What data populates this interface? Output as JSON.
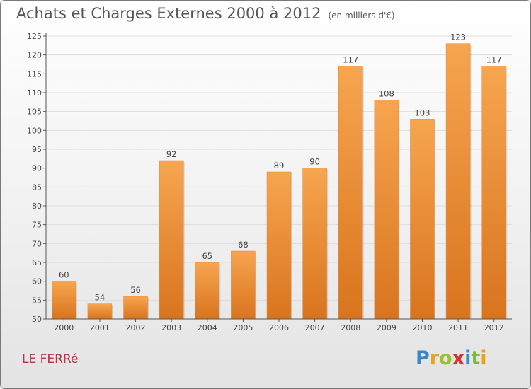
{
  "title": "Achats et Charges Externes 2000 à 2012",
  "unit": "(en milliers d'€)",
  "location": "LE FERRé",
  "logo": {
    "p": "P",
    "r": "r",
    "o": "o",
    "x": "x",
    "i1": "i",
    "t": "t",
    "i2": "i"
  },
  "colors": {
    "bar_top": "#f7a54f",
    "bar_bottom": "#d9741e",
    "grid": "#dddddd",
    "title": "#555555",
    "location": "#b8324a"
  },
  "chart_data": {
    "type": "bar",
    "title": "Achats et Charges Externes 2000 à 2012",
    "subtitle": "(en milliers d'€)",
    "categories": [
      "2000",
      "2001",
      "2002",
      "2003",
      "2004",
      "2005",
      "2006",
      "2007",
      "2008",
      "2009",
      "2010",
      "2011",
      "2012"
    ],
    "values": [
      60,
      54,
      56,
      92,
      65,
      68,
      89,
      90,
      117,
      108,
      103,
      123,
      117
    ],
    "ylim": [
      50,
      125
    ],
    "yticks": [
      50,
      55,
      60,
      65,
      70,
      75,
      80,
      85,
      90,
      95,
      100,
      105,
      110,
      115,
      120,
      125
    ],
    "grid": true,
    "xlabel": "",
    "ylabel": ""
  }
}
